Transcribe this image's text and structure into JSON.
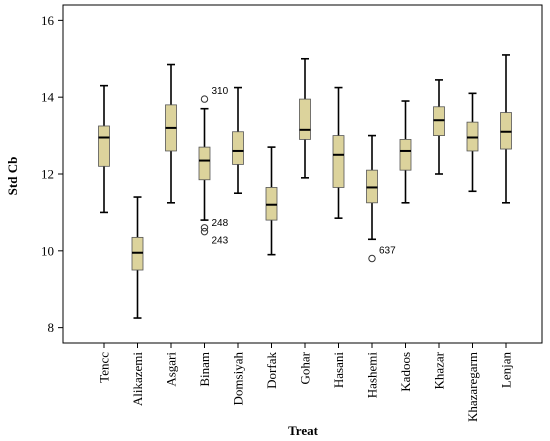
{
  "chart_data": {
    "type": "boxplot",
    "xlabel": "Treat",
    "ylabel": "Std Cb",
    "ylim": [
      7.6,
      16.4
    ],
    "yticks": [
      8,
      10,
      12,
      14,
      16
    ],
    "grid": false,
    "box_color": "#dcd39c",
    "categories": [
      "Tencc",
      "Alikazemi",
      "Asgari",
      "Binam",
      "Domsiyah",
      "Dorfak",
      "Gohar",
      "Hasani",
      "Hashemi",
      "Kadoos",
      "Khazar",
      "Khazaregarm",
      "Lenjan"
    ],
    "boxes": [
      {
        "min": 11.0,
        "q1": 12.2,
        "median": 12.95,
        "q3": 13.25,
        "max": 14.3
      },
      {
        "min": 8.25,
        "q1": 9.5,
        "median": 9.95,
        "q3": 10.35,
        "max": 11.4
      },
      {
        "min": 11.25,
        "q1": 12.6,
        "median": 13.2,
        "q3": 13.8,
        "max": 14.85
      },
      {
        "min": 10.8,
        "q1": 11.85,
        "median": 12.35,
        "q3": 12.7,
        "max": 13.7
      },
      {
        "min": 11.5,
        "q1": 12.25,
        "median": 12.6,
        "q3": 13.1,
        "max": 14.25
      },
      {
        "min": 9.9,
        "q1": 10.8,
        "median": 11.2,
        "q3": 11.65,
        "max": 12.7
      },
      {
        "min": 11.9,
        "q1": 12.9,
        "median": 13.15,
        "q3": 13.95,
        "max": 15.0
      },
      {
        "min": 10.85,
        "q1": 11.65,
        "median": 12.5,
        "q3": 13.0,
        "max": 14.25
      },
      {
        "min": 10.3,
        "q1": 11.25,
        "median": 11.65,
        "q3": 12.1,
        "max": 13.0
      },
      {
        "min": 11.25,
        "q1": 12.1,
        "median": 12.6,
        "q3": 12.9,
        "max": 13.9
      },
      {
        "min": 12.0,
        "q1": 13.0,
        "median": 13.4,
        "q3": 13.75,
        "max": 14.45
      },
      {
        "min": 11.55,
        "q1": 12.6,
        "median": 12.95,
        "q3": 13.35,
        "max": 14.1
      },
      {
        "min": 11.25,
        "q1": 12.65,
        "median": 13.1,
        "q3": 13.6,
        "max": 15.1
      }
    ],
    "outliers": [
      {
        "category": "Binam",
        "value": 13.95,
        "label": "310",
        "label_side": "right"
      },
      {
        "category": "Binam",
        "value": 10.6,
        "label": "248",
        "label_side": "right"
      },
      {
        "category": "Binam",
        "value": 10.5,
        "label": "243",
        "label_side": "right-below"
      },
      {
        "category": "Hashemi",
        "value": 9.8,
        "label": "637",
        "label_side": "right"
      }
    ]
  }
}
